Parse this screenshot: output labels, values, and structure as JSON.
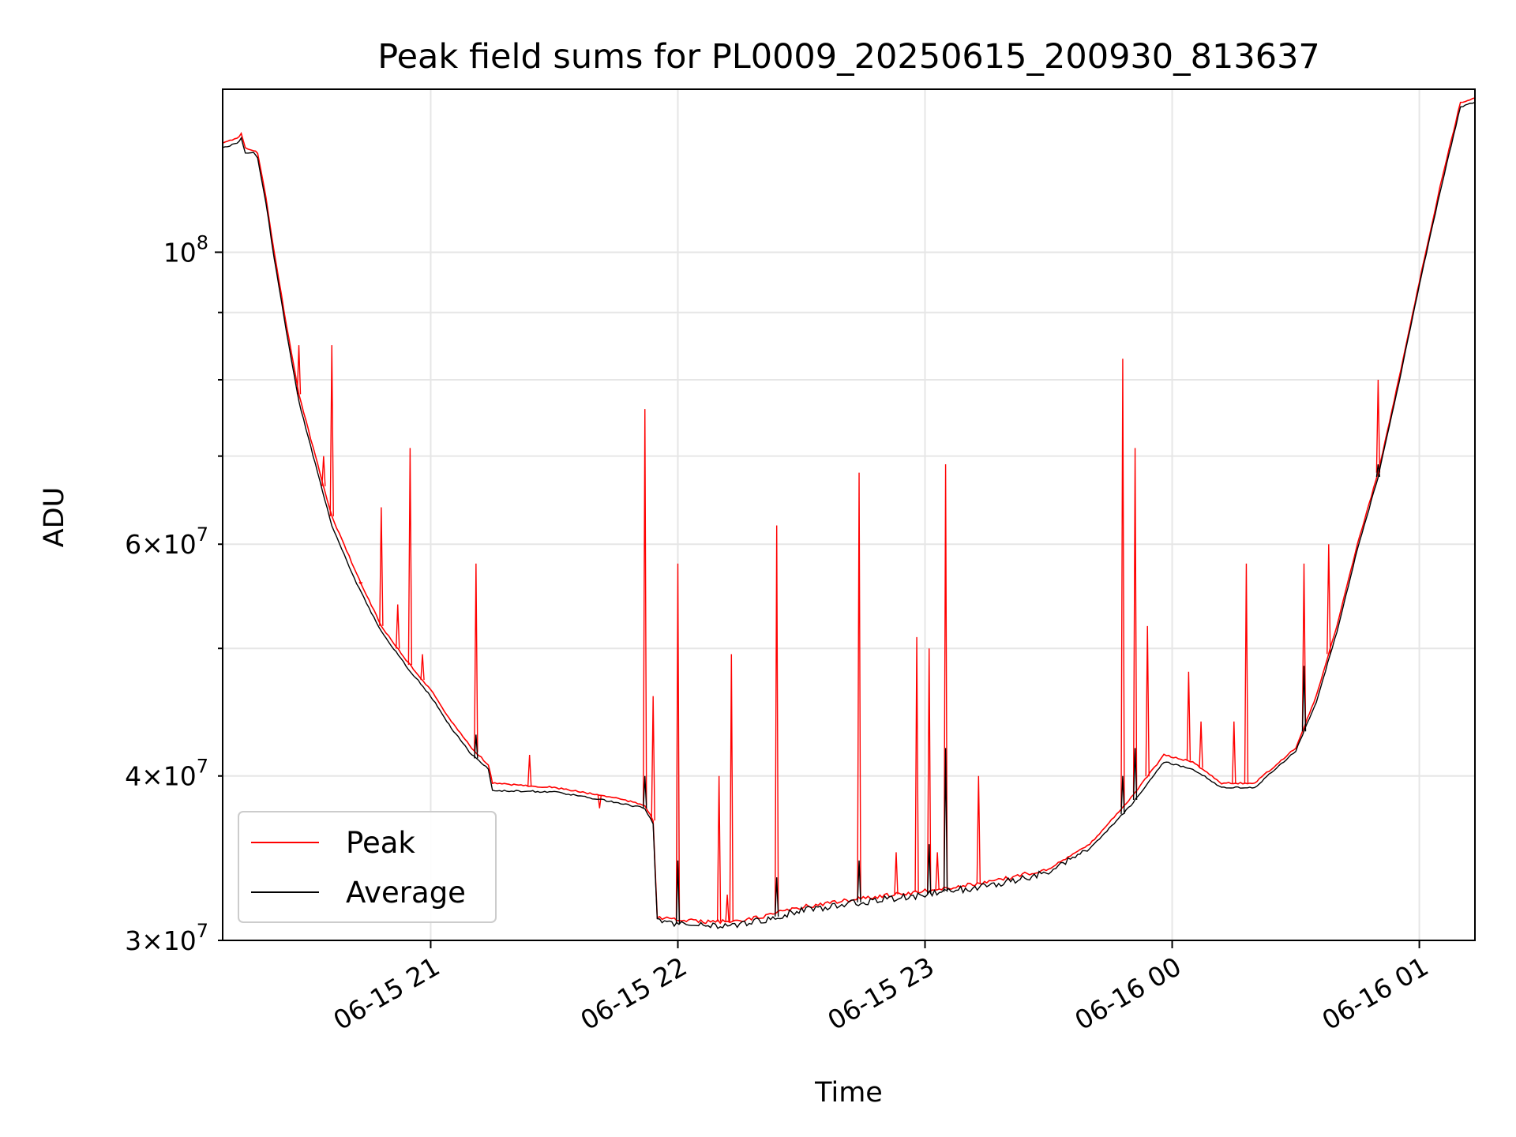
{
  "chart_data": {
    "type": "line",
    "title": "Peak field sums for PL0009_20250615_200930_813637",
    "xlabel": "Time",
    "ylabel": "ADU",
    "y_scale": "log",
    "ylim": [
      30000000,
      133000000
    ],
    "xlim": [
      "2025-06-15 20:09:30",
      "2025-06-16 01:13:30"
    ],
    "grid": true,
    "legend_position": "lower-left",
    "x_ticks": [
      {
        "label": "06-15 21",
        "value": "2025-06-15 21:00"
      },
      {
        "label": "06-15 22",
        "value": "2025-06-15 22:00"
      },
      {
        "label": "06-15 23",
        "value": "2025-06-15 23:00"
      },
      {
        "label": "06-16 00",
        "value": "2025-06-16 00:00"
      },
      {
        "label": "06-16 01",
        "value": "2025-06-16 01:00"
      }
    ],
    "y_ticks_major": [
      {
        "label_base": "10",
        "label_exp": "8",
        "value": 100000000
      }
    ],
    "y_ticks_minor": [
      {
        "label_mant": "3",
        "label_exp": "7",
        "value": 30000000
      },
      {
        "label_mant": "4",
        "label_exp": "7",
        "value": 40000000
      },
      {
        "label_mant": "6",
        "label_exp": "7",
        "value": 60000000
      }
    ],
    "y_minor_unlabeled": [
      50000000,
      70000000,
      80000000,
      90000000
    ],
    "series": [
      {
        "name": "Peak",
        "color": "#ff0000",
        "points": [
          [
            "2025-06-15 20:09:30",
            121000000
          ],
          [
            "2025-06-15 20:13",
            122000000
          ],
          [
            "2025-06-15 20:14",
            123000000
          ],
          [
            "2025-06-15 20:15",
            120000000
          ],
          [
            "2025-06-15 20:17",
            119500000
          ],
          [
            "2025-06-15 20:18",
            119000000
          ],
          [
            "2025-06-15 20:20",
            110000000
          ],
          [
            "2025-06-15 20:22",
            100000000
          ],
          [
            "2025-06-15 20:25",
            88000000
          ],
          [
            "2025-06-15 20:28",
            78000000
          ],
          [
            "2025-06-15 20:32",
            70000000
          ],
          [
            "2025-06-15 20:36",
            63000000
          ],
          [
            "2025-06-15 20:42",
            57000000
          ],
          [
            "2025-06-15 20:48",
            52000000
          ],
          [
            "2025-06-15 20:54",
            49000000
          ],
          [
            "2025-06-15 21:00",
            46500000
          ],
          [
            "2025-06-15 21:05",
            44000000
          ],
          [
            "2025-06-15 21:10",
            42000000
          ],
          [
            "2025-06-15 21:14",
            40800000
          ],
          [
            "2025-06-15 21:15",
            39500000
          ],
          [
            "2025-06-15 21:30",
            39200000
          ],
          [
            "2025-06-15 21:45",
            38500000
          ],
          [
            "2025-06-15 21:52",
            38000000
          ],
          [
            "2025-06-15 21:54",
            37000000
          ],
          [
            "2025-06-15 21:55",
            31200000
          ],
          [
            "2025-06-15 22:05",
            31000000
          ],
          [
            "2025-06-15 22:15",
            31000000
          ],
          [
            "2025-06-15 22:30",
            31800000
          ],
          [
            "2025-06-15 22:45",
            32300000
          ],
          [
            "2025-06-15 23:00",
            32700000
          ],
          [
            "2025-06-15 23:15",
            33200000
          ],
          [
            "2025-06-15 23:30",
            34000000
          ],
          [
            "2025-06-15 23:40",
            35500000
          ],
          [
            "2025-06-15 23:50",
            38500000
          ],
          [
            "2025-06-15 23:58",
            41500000
          ],
          [
            "2025-06-16 00:05",
            41000000
          ],
          [
            "2025-06-16 00:12",
            39500000
          ],
          [
            "2025-06-16 00:20",
            39500000
          ],
          [
            "2025-06-16 00:30",
            42000000
          ],
          [
            "2025-06-16 00:35",
            46000000
          ],
          [
            "2025-06-16 00:40",
            52000000
          ],
          [
            "2025-06-16 00:45",
            60000000
          ],
          [
            "2025-06-16 00:50",
            68000000
          ],
          [
            "2025-06-16 00:55",
            80000000
          ],
          [
            "2025-06-16 01:00",
            95000000
          ],
          [
            "2025-06-16 01:05",
            112000000
          ],
          [
            "2025-06-16 01:10",
            130000000
          ],
          [
            "2025-06-16 01:13:30",
            131000000
          ]
        ],
        "spikes": [
          [
            "2025-06-15 20:28",
            85000000
          ],
          [
            "2025-06-15 20:34",
            70000000
          ],
          [
            "2025-06-15 20:36",
            85000000
          ],
          [
            "2025-06-15 20:43",
            56000000
          ],
          [
            "2025-06-15 20:48",
            64000000
          ],
          [
            "2025-06-15 20:52",
            54000000
          ],
          [
            "2025-06-15 20:55",
            71000000
          ],
          [
            "2025-06-15 20:58",
            49500000
          ],
          [
            "2025-06-15 21:11",
            58000000
          ],
          [
            "2025-06-15 21:24",
            41500000
          ],
          [
            "2025-06-15 21:41",
            37800000
          ],
          [
            "2025-06-15 21:52",
            76000000
          ],
          [
            "2025-06-15 21:54",
            46000000
          ],
          [
            "2025-06-15 22:00",
            58000000
          ],
          [
            "2025-06-15 22:10",
            40000000
          ],
          [
            "2025-06-15 22:12",
            32500000
          ],
          [
            "2025-06-15 22:13",
            49500000
          ],
          [
            "2025-06-15 22:24",
            62000000
          ],
          [
            "2025-06-15 22:44",
            68000000
          ],
          [
            "2025-06-15 22:53",
            35000000
          ],
          [
            "2025-06-15 22:58",
            51000000
          ],
          [
            "2025-06-15 23:01",
            50000000
          ],
          [
            "2025-06-15 23:03",
            35000000
          ],
          [
            "2025-06-15 23:05",
            69000000
          ],
          [
            "2025-06-15 23:13",
            40000000
          ],
          [
            "2025-06-15 23:48",
            83000000
          ],
          [
            "2025-06-15 23:51",
            71000000
          ],
          [
            "2025-06-15 23:54",
            52000000
          ],
          [
            "2025-06-16 00:04",
            48000000
          ],
          [
            "2025-06-16 00:07",
            44000000
          ],
          [
            "2025-06-16 00:15",
            44000000
          ],
          [
            "2025-06-16 00:18",
            58000000
          ],
          [
            "2025-06-16 00:32",
            58000000
          ],
          [
            "2025-06-16 00:38",
            60000000
          ],
          [
            "2025-06-16 00:50",
            80000000
          ]
        ]
      },
      {
        "name": "Average",
        "color": "#000000",
        "points": [
          [
            "2025-06-15 20:09:30",
            120000000
          ],
          [
            "2025-06-15 20:13",
            121000000
          ],
          [
            "2025-06-15 20:14",
            122000000
          ],
          [
            "2025-06-15 20:15",
            119000000
          ],
          [
            "2025-06-15 20:17",
            119000000
          ],
          [
            "2025-06-15 20:18",
            118000000
          ],
          [
            "2025-06-15 20:20",
            109000000
          ],
          [
            "2025-06-15 20:22",
            99000000
          ],
          [
            "2025-06-15 20:25",
            87000000
          ],
          [
            "2025-06-15 20:28",
            77000000
          ],
          [
            "2025-06-15 20:32",
            69000000
          ],
          [
            "2025-06-15 20:36",
            62000000
          ],
          [
            "2025-06-15 20:42",
            56000000
          ],
          [
            "2025-06-15 20:48",
            51500000
          ],
          [
            "2025-06-15 20:54",
            48500000
          ],
          [
            "2025-06-15 21:00",
            46000000
          ],
          [
            "2025-06-15 21:05",
            43500000
          ],
          [
            "2025-06-15 21:10",
            41500000
          ],
          [
            "2025-06-15 21:14",
            40500000
          ],
          [
            "2025-06-15 21:15",
            39000000
          ],
          [
            "2025-06-15 21:30",
            38900000
          ],
          [
            "2025-06-15 21:45",
            38200000
          ],
          [
            "2025-06-15 21:52",
            37800000
          ],
          [
            "2025-06-15 21:54",
            36800000
          ],
          [
            "2025-06-15 21:55",
            31000000
          ],
          [
            "2025-06-15 22:05",
            30800000
          ],
          [
            "2025-06-15 22:15",
            30800000
          ],
          [
            "2025-06-15 22:30",
            31600000
          ],
          [
            "2025-06-15 22:45",
            32100000
          ],
          [
            "2025-06-15 23:00",
            32500000
          ],
          [
            "2025-06-15 23:15",
            33000000
          ],
          [
            "2025-06-15 23:30",
            33800000
          ],
          [
            "2025-06-15 23:40",
            35200000
          ],
          [
            "2025-06-15 23:50",
            38000000
          ],
          [
            "2025-06-15 23:58",
            41000000
          ],
          [
            "2025-06-16 00:05",
            40500000
          ],
          [
            "2025-06-16 00:12",
            39200000
          ],
          [
            "2025-06-16 00:20",
            39200000
          ],
          [
            "2025-06-16 00:30",
            41800000
          ],
          [
            "2025-06-16 00:35",
            45500000
          ],
          [
            "2025-06-16 00:40",
            51500000
          ],
          [
            "2025-06-16 00:45",
            59500000
          ],
          [
            "2025-06-16 00:50",
            67500000
          ],
          [
            "2025-06-16 00:55",
            79500000
          ],
          [
            "2025-06-16 01:00",
            94500000
          ],
          [
            "2025-06-16 01:05",
            111000000
          ],
          [
            "2025-06-16 01:10",
            129000000
          ],
          [
            "2025-06-16 01:13:30",
            130000000
          ]
        ],
        "spikes": [
          [
            "2025-06-15 21:11",
            43000000
          ],
          [
            "2025-06-15 21:52",
            40000000
          ],
          [
            "2025-06-15 22:00",
            34500000
          ],
          [
            "2025-06-15 22:24",
            33500000
          ],
          [
            "2025-06-15 22:44",
            34500000
          ],
          [
            "2025-06-15 23:01",
            35500000
          ],
          [
            "2025-06-15 23:05",
            42000000
          ],
          [
            "2025-06-15 23:48",
            40000000
          ],
          [
            "2025-06-15 23:51",
            42000000
          ],
          [
            "2025-06-16 00:32",
            48500000
          ],
          [
            "2025-06-16 00:50",
            69000000
          ]
        ]
      }
    ]
  }
}
